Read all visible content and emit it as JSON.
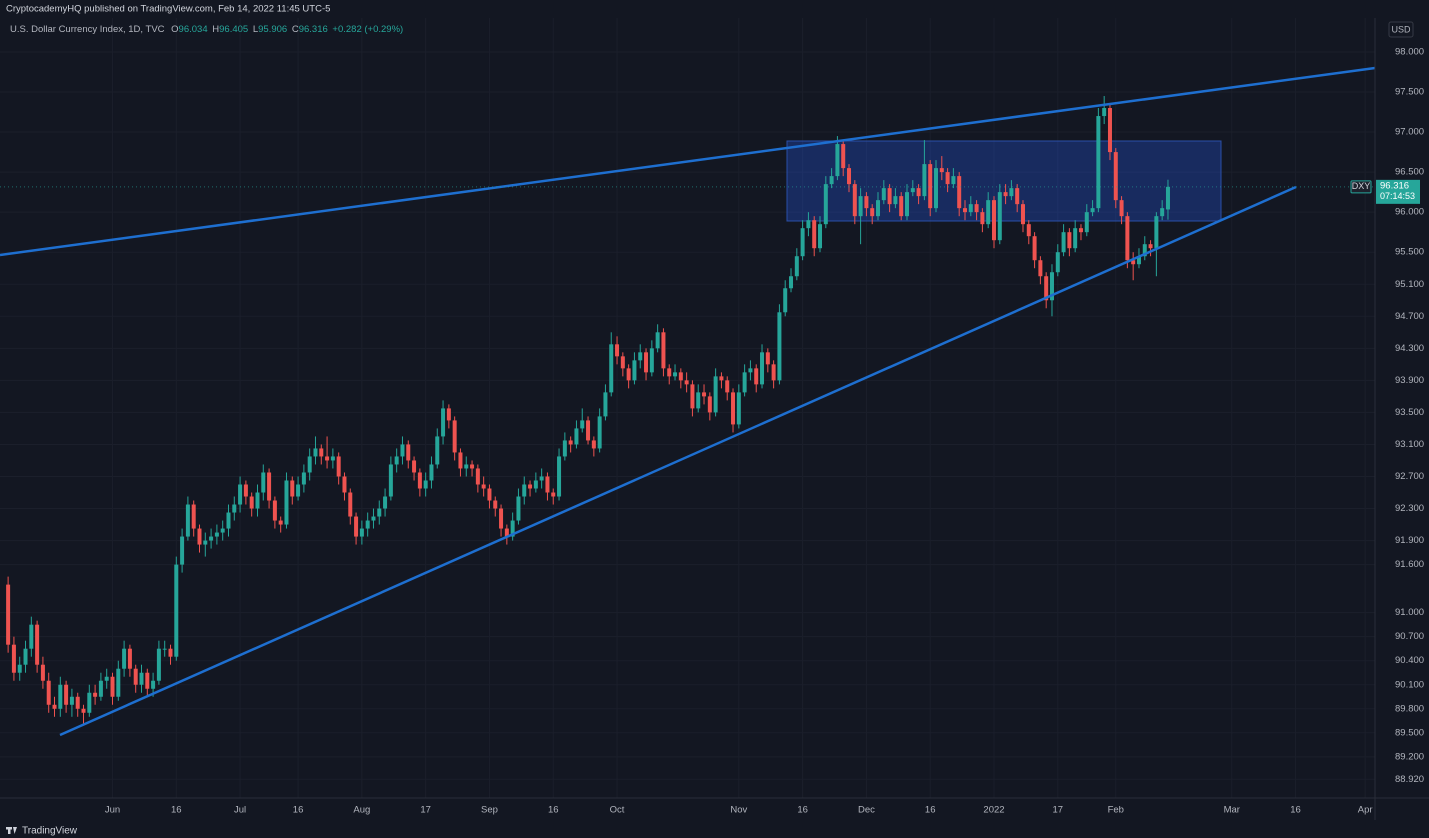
{
  "header": {
    "publisher": "CryptocademyHQ published on TradingView.com, Feb 14, 2022 11:45 UTC-5"
  },
  "chart_data": {
    "type": "candlestick",
    "title": "U.S. Dollar Currency Index, 1D, TVC",
    "ohlc_labels": [
      "O",
      "H",
      "L",
      "C"
    ],
    "ohlc": [
      96.034,
      96.405,
      95.906,
      96.316
    ],
    "change": "+0.282 (+0.29%)",
    "currency": "USD",
    "last_price": {
      "symbol": "DXY",
      "value": 96.316,
      "countdown": "07:14:53"
    },
    "up_color": "#26a69a",
    "down_color": "#ef5350",
    "grid": true,
    "xlim": [
      -1.4,
      235.7
    ],
    "xticks": [
      {
        "value": 18,
        "label": "Jun"
      },
      {
        "value": 29,
        "label": "16"
      },
      {
        "value": 40,
        "label": "Jul"
      },
      {
        "value": 50,
        "label": "16"
      },
      {
        "value": 61,
        "label": "Aug"
      },
      {
        "value": 72,
        "label": "17"
      },
      {
        "value": 83,
        "label": "Sep"
      },
      {
        "value": 94,
        "label": "16"
      },
      {
        "value": 105,
        "label": "Oct"
      },
      {
        "value": 126,
        "label": "Nov"
      },
      {
        "value": 137,
        "label": "16"
      },
      {
        "value": 148,
        "label": "Dec"
      },
      {
        "value": 159,
        "label": "16"
      },
      {
        "value": 170,
        "label": "2022"
      },
      {
        "value": 181,
        "label": "17"
      },
      {
        "value": 191,
        "label": "Feb"
      },
      {
        "value": 211,
        "label": "Mar"
      },
      {
        "value": 222,
        "label": "16"
      },
      {
        "value": 234,
        "label": "Apr"
      }
    ],
    "ylim": [
      88.686,
      98.424
    ],
    "yticks": [
      {
        "value": 98,
        "label": "98.000"
      },
      {
        "value": 97.5,
        "label": "97.500"
      },
      {
        "value": 97,
        "label": "97.000"
      },
      {
        "value": 96.5,
        "label": "96.500"
      },
      {
        "value": 96,
        "label": "96.000"
      },
      {
        "value": 95.5,
        "label": "95.500"
      },
      {
        "value": 95.1,
        "label": "95.100"
      },
      {
        "value": 94.7,
        "label": "94.700"
      },
      {
        "value": 94.3,
        "label": "94.300"
      },
      {
        "value": 93.9,
        "label": "93.900"
      },
      {
        "value": 93.5,
        "label": "93.500"
      },
      {
        "value": 93.1,
        "label": "93.100"
      },
      {
        "value": 92.7,
        "label": "92.700"
      },
      {
        "value": 92.3,
        "label": "92.300"
      },
      {
        "value": 91.9,
        "label": "91.900"
      },
      {
        "value": 91.6,
        "label": "91.600"
      },
      {
        "value": 91,
        "label": "91.000"
      },
      {
        "value": 90.7,
        "label": "90.700"
      },
      {
        "value": 90.4,
        "label": "90.400"
      },
      {
        "value": 90.1,
        "label": "90.100"
      },
      {
        "value": 89.8,
        "label": "89.800"
      },
      {
        "value": 89.5,
        "label": "89.500"
      },
      {
        "value": 89.2,
        "label": "89.200"
      },
      {
        "value": 88.92,
        "label": "88.920"
      }
    ],
    "candles": [
      [
        91.35,
        91.45,
        90.5,
        90.6
      ],
      [
        90.6,
        90.7,
        90.15,
        90.25
      ],
      [
        90.25,
        90.45,
        90.15,
        90.35
      ],
      [
        90.35,
        90.65,
        90.25,
        90.55
      ],
      [
        90.55,
        90.95,
        90.45,
        90.85
      ],
      [
        90.85,
        90.9,
        90.25,
        90.35
      ],
      [
        90.35,
        90.45,
        90.05,
        90.15
      ],
      [
        90.15,
        90.25,
        89.75,
        89.85
      ],
      [
        89.85,
        89.95,
        89.7,
        89.8
      ],
      [
        89.8,
        90.2,
        89.7,
        90.1
      ],
      [
        90.1,
        90.15,
        89.75,
        89.85
      ],
      [
        89.85,
        90.05,
        89.7,
        89.95
      ],
      [
        89.95,
        90.0,
        89.7,
        89.8
      ],
      [
        89.8,
        89.85,
        89.6,
        89.75
      ],
      [
        89.75,
        90.1,
        89.7,
        90.0
      ],
      [
        90.0,
        90.1,
        89.85,
        89.95
      ],
      [
        89.95,
        90.25,
        89.9,
        90.15
      ],
      [
        90.15,
        90.3,
        90.05,
        90.2
      ],
      [
        90.2,
        90.25,
        89.85,
        89.95
      ],
      [
        89.95,
        90.4,
        89.9,
        90.3
      ],
      [
        90.3,
        90.65,
        90.2,
        90.55
      ],
      [
        90.55,
        90.6,
        90.2,
        90.3
      ],
      [
        90.3,
        90.35,
        90.0,
        90.1
      ],
      [
        90.1,
        90.35,
        90.0,
        90.25
      ],
      [
        90.25,
        90.3,
        89.95,
        90.05
      ],
      [
        90.05,
        90.25,
        89.95,
        90.15
      ],
      [
        90.15,
        90.65,
        90.1,
        90.55
      ],
      [
        90.55,
        90.65,
        90.45,
        90.55
      ],
      [
        90.55,
        90.6,
        90.35,
        90.45
      ],
      [
        90.45,
        91.7,
        90.4,
        91.6
      ],
      [
        91.6,
        92.05,
        91.5,
        91.95
      ],
      [
        91.95,
        92.45,
        91.9,
        92.35
      ],
      [
        92.35,
        92.4,
        91.95,
        92.05
      ],
      [
        92.05,
        92.1,
        91.75,
        91.85
      ],
      [
        91.85,
        92.0,
        91.7,
        91.9
      ],
      [
        91.9,
        92.05,
        91.8,
        91.95
      ],
      [
        91.95,
        92.1,
        91.85,
        92.0
      ],
      [
        92.0,
        92.15,
        91.9,
        92.05
      ],
      [
        92.05,
        92.35,
        91.95,
        92.25
      ],
      [
        92.25,
        92.45,
        92.15,
        92.35
      ],
      [
        92.35,
        92.7,
        92.25,
        92.6
      ],
      [
        92.6,
        92.65,
        92.35,
        92.45
      ],
      [
        92.45,
        92.5,
        92.2,
        92.3
      ],
      [
        92.3,
        92.6,
        92.2,
        92.5
      ],
      [
        92.5,
        92.85,
        92.4,
        92.75
      ],
      [
        92.75,
        92.8,
        92.3,
        92.4
      ],
      [
        92.4,
        92.45,
        92.05,
        92.15
      ],
      [
        92.15,
        92.2,
        92.0,
        92.1
      ],
      [
        92.1,
        92.75,
        92.05,
        92.65
      ],
      [
        92.65,
        92.7,
        92.35,
        92.45
      ],
      [
        92.45,
        92.7,
        92.4,
        92.6
      ],
      [
        92.6,
        92.85,
        92.5,
        92.75
      ],
      [
        92.75,
        93.05,
        92.65,
        92.95
      ],
      [
        92.95,
        93.2,
        92.85,
        93.05
      ],
      [
        93.05,
        93.1,
        92.85,
        92.95
      ],
      [
        92.95,
        93.2,
        92.8,
        92.9
      ],
      [
        92.9,
        93.05,
        92.8,
        92.95
      ],
      [
        92.95,
        93.0,
        92.6,
        92.7
      ],
      [
        92.7,
        92.75,
        92.4,
        92.5
      ],
      [
        92.5,
        92.55,
        92.1,
        92.2
      ],
      [
        92.2,
        92.25,
        91.85,
        91.95
      ],
      [
        91.95,
        92.15,
        91.85,
        92.05
      ],
      [
        92.05,
        92.25,
        91.95,
        92.15
      ],
      [
        92.15,
        92.3,
        92.05,
        92.2
      ],
      [
        92.2,
        92.4,
        92.1,
        92.3
      ],
      [
        92.3,
        92.55,
        92.2,
        92.45
      ],
      [
        92.45,
        92.95,
        92.4,
        92.85
      ],
      [
        92.85,
        93.05,
        92.75,
        92.95
      ],
      [
        92.95,
        93.2,
        92.85,
        93.1
      ],
      [
        93.1,
        93.15,
        92.8,
        92.9
      ],
      [
        92.9,
        92.95,
        92.65,
        92.75
      ],
      [
        92.75,
        92.8,
        92.45,
        92.55
      ],
      [
        92.55,
        92.75,
        92.45,
        92.65
      ],
      [
        92.65,
        92.95,
        92.55,
        92.85
      ],
      [
        92.85,
        93.3,
        92.8,
        93.2
      ],
      [
        93.2,
        93.65,
        93.1,
        93.55
      ],
      [
        93.55,
        93.6,
        93.3,
        93.4
      ],
      [
        93.4,
        93.45,
        92.9,
        93.0
      ],
      [
        93.0,
        93.05,
        92.7,
        92.8
      ],
      [
        92.8,
        92.95,
        92.7,
        92.85
      ],
      [
        92.85,
        92.9,
        92.7,
        92.8
      ],
      [
        92.8,
        92.85,
        92.5,
        92.6
      ],
      [
        92.6,
        92.7,
        92.45,
        92.55
      ],
      [
        92.55,
        92.6,
        92.3,
        92.4
      ],
      [
        92.4,
        92.45,
        92.2,
        92.3
      ],
      [
        92.3,
        92.35,
        91.95,
        92.05
      ],
      [
        92.05,
        92.1,
        91.85,
        91.95
      ],
      [
        91.95,
        92.25,
        91.9,
        92.15
      ],
      [
        92.15,
        92.55,
        92.1,
        92.45
      ],
      [
        92.45,
        92.7,
        92.35,
        92.6
      ],
      [
        92.6,
        92.65,
        92.45,
        92.55
      ],
      [
        92.55,
        92.75,
        92.5,
        92.65
      ],
      [
        92.65,
        92.8,
        92.55,
        92.7
      ],
      [
        92.7,
        92.75,
        92.4,
        92.5
      ],
      [
        92.5,
        92.55,
        92.35,
        92.45
      ],
      [
        92.45,
        93.05,
        92.4,
        92.95
      ],
      [
        92.95,
        93.25,
        92.9,
        93.15
      ],
      [
        93.15,
        93.2,
        93.0,
        93.1
      ],
      [
        93.1,
        93.4,
        93.05,
        93.3
      ],
      [
        93.3,
        93.55,
        93.25,
        93.4
      ],
      [
        93.4,
        93.45,
        93.1,
        93.15
      ],
      [
        93.15,
        93.2,
        92.95,
        93.05
      ],
      [
        93.05,
        93.55,
        93.0,
        93.45
      ],
      [
        93.45,
        93.85,
        93.4,
        93.75
      ],
      [
        93.75,
        94.5,
        93.7,
        94.35
      ],
      [
        94.35,
        94.45,
        94.1,
        94.2
      ],
      [
        94.2,
        94.25,
        93.95,
        94.05
      ],
      [
        94.05,
        94.1,
        93.8,
        93.9
      ],
      [
        93.9,
        94.25,
        93.85,
        94.15
      ],
      [
        94.15,
        94.35,
        94.05,
        94.25
      ],
      [
        94.25,
        94.3,
        93.9,
        94.0
      ],
      [
        94.0,
        94.4,
        93.95,
        94.3
      ],
      [
        94.3,
        94.6,
        94.25,
        94.5
      ],
      [
        94.5,
        94.55,
        93.95,
        94.05
      ],
      [
        94.05,
        94.1,
        93.85,
        93.95
      ],
      [
        93.95,
        94.1,
        93.9,
        94.0
      ],
      [
        94.0,
        94.05,
        93.8,
        93.9
      ],
      [
        93.9,
        94.0,
        93.75,
        93.85
      ],
      [
        93.85,
        93.9,
        93.45,
        93.55
      ],
      [
        93.55,
        93.85,
        93.5,
        93.75
      ],
      [
        93.75,
        93.85,
        93.6,
        93.7
      ],
      [
        93.7,
        93.75,
        93.4,
        93.5
      ],
      [
        93.5,
        94.05,
        93.45,
        93.95
      ],
      [
        93.95,
        94.0,
        93.8,
        93.9
      ],
      [
        93.9,
        93.95,
        93.65,
        93.75
      ],
      [
        93.75,
        93.8,
        93.25,
        93.35
      ],
      [
        93.35,
        93.85,
        93.3,
        93.75
      ],
      [
        93.75,
        94.1,
        93.7,
        94.0
      ],
      [
        94.0,
        94.15,
        93.9,
        94.05
      ],
      [
        94.05,
        94.1,
        93.75,
        93.85
      ],
      [
        93.85,
        94.35,
        93.8,
        94.25
      ],
      [
        94.25,
        94.3,
        94.0,
        94.1
      ],
      [
        94.1,
        94.15,
        93.8,
        93.9
      ],
      [
        93.9,
        94.85,
        93.85,
        94.75
      ],
      [
        94.75,
        95.15,
        94.7,
        95.05
      ],
      [
        95.05,
        95.3,
        95.0,
        95.2
      ],
      [
        95.2,
        95.55,
        95.15,
        95.45
      ],
      [
        95.45,
        95.9,
        95.4,
        95.8
      ],
      [
        95.8,
        96.0,
        95.7,
        95.9
      ],
      [
        95.9,
        95.95,
        95.45,
        95.55
      ],
      [
        95.55,
        95.95,
        95.5,
        95.85
      ],
      [
        95.85,
        96.45,
        95.8,
        96.35
      ],
      [
        96.35,
        96.55,
        96.3,
        96.45
      ],
      [
        96.45,
        96.95,
        96.4,
        96.85
      ],
      [
        96.85,
        96.9,
        96.45,
        96.55
      ],
      [
        96.55,
        96.6,
        96.25,
        96.35
      ],
      [
        96.35,
        96.4,
        95.85,
        95.95
      ],
      [
        95.95,
        96.3,
        95.6,
        96.2
      ],
      [
        96.2,
        96.25,
        95.95,
        96.05
      ],
      [
        96.05,
        96.1,
        95.85,
        95.95
      ],
      [
        95.95,
        96.25,
        95.9,
        96.15
      ],
      [
        96.15,
        96.4,
        96.1,
        96.3
      ],
      [
        96.3,
        96.35,
        96.0,
        96.1
      ],
      [
        96.1,
        96.3,
        96.05,
        96.2
      ],
      [
        96.2,
        96.25,
        95.9,
        95.95
      ],
      [
        95.95,
        96.35,
        95.9,
        96.25
      ],
      [
        96.25,
        96.4,
        96.2,
        96.3
      ],
      [
        96.3,
        96.35,
        96.1,
        96.2
      ],
      [
        96.2,
        96.9,
        96.15,
        96.6
      ],
      [
        96.6,
        96.65,
        95.95,
        96.05
      ],
      [
        96.05,
        96.65,
        96.0,
        96.55
      ],
      [
        96.55,
        96.7,
        96.4,
        96.5
      ],
      [
        96.5,
        96.55,
        96.25,
        96.35
      ],
      [
        96.35,
        96.55,
        96.3,
        96.45
      ],
      [
        96.45,
        96.5,
        95.95,
        96.05
      ],
      [
        96.05,
        96.15,
        95.9,
        96.0
      ],
      [
        96.0,
        96.2,
        95.95,
        96.1
      ],
      [
        96.1,
        96.15,
        95.9,
        96.0
      ],
      [
        96.0,
        96.05,
        95.75,
        95.85
      ],
      [
        95.85,
        96.25,
        95.8,
        96.15
      ],
      [
        96.15,
        96.2,
        95.55,
        95.65
      ],
      [
        95.65,
        96.35,
        95.6,
        96.25
      ],
      [
        96.25,
        96.35,
        96.1,
        96.2
      ],
      [
        96.2,
        96.4,
        96.15,
        96.3
      ],
      [
        96.3,
        96.35,
        96.0,
        96.1
      ],
      [
        96.1,
        96.15,
        95.75,
        95.85
      ],
      [
        95.85,
        95.9,
        95.6,
        95.7
      ],
      [
        95.7,
        95.75,
        95.3,
        95.4
      ],
      [
        95.4,
        95.45,
        95.1,
        95.2
      ],
      [
        95.2,
        95.25,
        94.8,
        94.9
      ],
      [
        94.9,
        95.35,
        94.7,
        95.25
      ],
      [
        95.25,
        95.6,
        95.2,
        95.5
      ],
      [
        95.5,
        95.85,
        95.45,
        95.75
      ],
      [
        95.75,
        95.8,
        95.45,
        95.55
      ],
      [
        95.55,
        95.9,
        95.5,
        95.8
      ],
      [
        95.8,
        95.85,
        95.65,
        95.75
      ],
      [
        95.75,
        96.1,
        95.7,
        96.0
      ],
      [
        96.0,
        96.15,
        95.95,
        96.05
      ],
      [
        96.05,
        97.3,
        96.0,
        97.2
      ],
      [
        97.2,
        97.45,
        97.1,
        97.3
      ],
      [
        97.3,
        97.35,
        96.65,
        96.75
      ],
      [
        96.75,
        96.8,
        96.05,
        96.15
      ],
      [
        96.15,
        96.2,
        95.85,
        95.95
      ],
      [
        95.95,
        96.0,
        95.3,
        95.4
      ],
      [
        95.4,
        95.5,
        95.15,
        95.35
      ],
      [
        95.35,
        95.55,
        95.3,
        95.45
      ],
      [
        95.45,
        95.7,
        95.4,
        95.6
      ],
      [
        95.6,
        95.65,
        95.45,
        95.55
      ],
      [
        95.55,
        96.0,
        95.2,
        95.95
      ],
      [
        95.95,
        96.15,
        95.9,
        96.05
      ],
      [
        96.034,
        96.405,
        95.906,
        96.316
      ]
    ]
  },
  "footer": {
    "brand": "TradingView"
  }
}
